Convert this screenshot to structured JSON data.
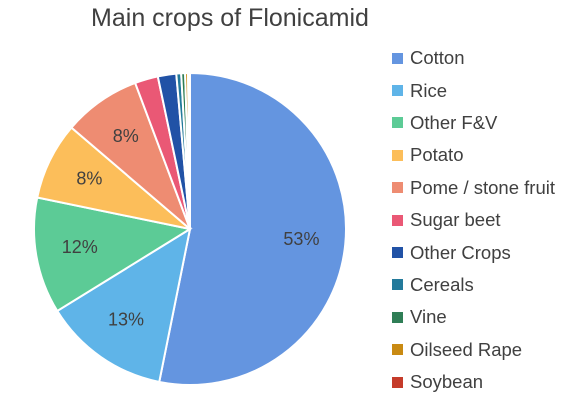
{
  "chart_data": {
    "type": "pie",
    "title": "Main crops of Flonicamid",
    "slices": [
      {
        "name": "Cotton",
        "value": 53,
        "label": "53%",
        "color": "#6495E0"
      },
      {
        "name": "Rice",
        "value": 13,
        "label": "13%",
        "color": "#5FB4E8"
      },
      {
        "name": "Other F&V",
        "value": 12,
        "label": "12%",
        "color": "#5CCB96"
      },
      {
        "name": "Potato",
        "value": 8,
        "label": "8%",
        "color": "#FCBE5A"
      },
      {
        "name": "Pome / stone fruit",
        "value": 8,
        "label": "8%",
        "color": "#EE8C72"
      },
      {
        "name": "Sugar beet",
        "value": 2.4,
        "label": "",
        "color": "#EA5875"
      },
      {
        "name": "Other Crops",
        "value": 1.9,
        "label": "",
        "color": "#2152A6"
      },
      {
        "name": "Cereals",
        "value": 0.5,
        "label": "",
        "color": "#237A9B"
      },
      {
        "name": "Vine",
        "value": 0.4,
        "label": "",
        "color": "#2F7E56"
      },
      {
        "name": "Oilseed Rape",
        "value": 0.3,
        "label": "",
        "color": "#C98A12"
      },
      {
        "name": "Soybean",
        "value": 0.2,
        "label": "",
        "color": "#C53B2A"
      }
    ],
    "legend_position": "right"
  }
}
